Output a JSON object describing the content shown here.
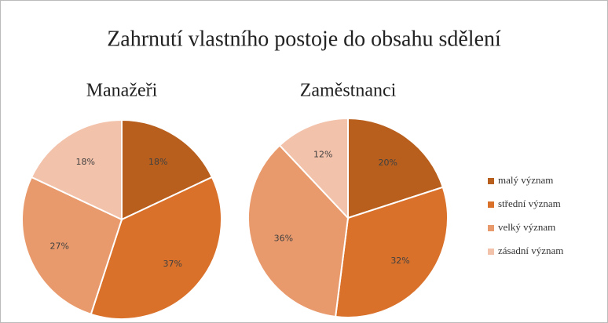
{
  "title": "Zahrnutí vlastního postoje do obsahu sdělení",
  "chart_data": [
    {
      "type": "pie",
      "title": "Manažeři",
      "categories": [
        "malý význam",
        "střední význam",
        "velký význam",
        "zásadní význam"
      ],
      "values": [
        18,
        37,
        27,
        18
      ],
      "value_labels": [
        "18%",
        "37%",
        "27%",
        "18%"
      ],
      "colors": [
        "#b85f1e",
        "#d9712b",
        "#e99a6c",
        "#f3c2ab"
      ]
    },
    {
      "type": "pie",
      "title": "Zaměstnanci",
      "categories": [
        "malý význam",
        "střední význam",
        "velký význam",
        "zásadní význam"
      ],
      "values": [
        20,
        32,
        36,
        12
      ],
      "value_labels": [
        "20%",
        "32%",
        "36%",
        "12%"
      ],
      "colors": [
        "#b85f1e",
        "#d9712b",
        "#e99a6c",
        "#f3c2ab"
      ]
    }
  ]
}
